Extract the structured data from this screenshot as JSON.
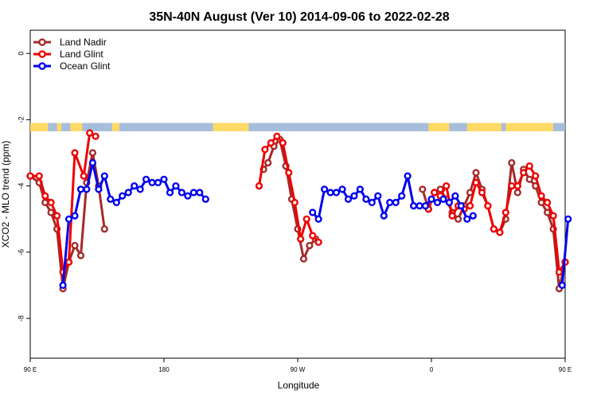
{
  "chart_data": {
    "type": "line",
    "title": "35N-40N August (Ver 10)   2014-09-06 to 2022-02-28",
    "xlabel": "Longitude",
    "ylabel": "XCO2 - MLO trend (ppm)",
    "xlim": [
      90,
      450
    ],
    "ylim": [
      -9.2,
      0.7
    ],
    "x_ticks": [
      {
        "value": 90,
        "label": "90 E"
      },
      {
        "value": 180,
        "label": "180"
      },
      {
        "value": 270,
        "label": "90 W"
      },
      {
        "value": 360,
        "label": "0"
      },
      {
        "value": 450,
        "label": "90 E"
      },
      {
        "value": 540,
        "label": "180"
      }
    ],
    "y_ticks": [
      {
        "value": 0,
        "label": "0"
      },
      {
        "value": -2,
        "label": "-2"
      },
      {
        "value": -4,
        "label": "-4"
      },
      {
        "value": -6,
        "label": "-6"
      },
      {
        "value": -8,
        "label": "-8"
      }
    ],
    "grid": false,
    "legend": {
      "position": "top-left"
    },
    "series": [
      {
        "name": "Land Nadir",
        "color": "#A52A2A",
        "segments": [
          [
            [
              90,
              -3.7
            ],
            [
              96,
              -3.9
            ],
            [
              100,
              -4.5
            ],
            [
              104,
              -4.8
            ],
            [
              108,
              -5.3
            ],
            [
              112,
              -7.1
            ],
            [
              116,
              -6.3
            ],
            [
              120,
              -5.8
            ],
            [
              124,
              -6.1
            ],
            [
              128,
              -3.9
            ],
            [
              132,
              -3.0
            ],
            [
              136,
              -4.0
            ],
            [
              140,
              -5.3
            ]
          ],
          [
            [
              247,
              -3.5
            ],
            [
              250,
              -3.3
            ],
            [
              254,
              -2.8
            ],
            [
              258,
              -2.6
            ],
            [
              262,
              -3.4
            ],
            [
              266,
              -4.4
            ],
            [
              270,
              -5.3
            ],
            [
              274,
              -6.2
            ],
            [
              278,
              -5.8
            ],
            [
              282,
              -5.6
            ]
          ],
          [
            [
              354,
              -4.1
            ],
            [
              358,
              -4.7
            ],
            [
              362,
              -4.2
            ],
            [
              366,
              -4.1
            ],
            [
              370,
              -4.4
            ],
            [
              374,
              -4.8
            ],
            [
              378,
              -5.0
            ],
            [
              382,
              -4.6
            ],
            [
              386,
              -4.2
            ],
            [
              390,
              -3.6
            ],
            [
              394,
              -4.1
            ],
            [
              398,
              -4.6
            ],
            [
              402,
              -5.3
            ],
            [
              406,
              -5.4
            ],
            [
              410,
              -5.0
            ],
            [
              414,
              -3.3
            ],
            [
              418,
              -4.2
            ],
            [
              422,
              -3.5
            ],
            [
              426,
              -3.8
            ],
            [
              430,
              -4.0
            ],
            [
              434,
              -4.5
            ],
            [
              438,
              -4.8
            ],
            [
              442,
              -5.3
            ],
            [
              446,
              -7.1
            ],
            [
              450,
              -6.3
            ]
          ]
        ]
      },
      {
        "name": "Land Glint",
        "color": "#EE0000",
        "segments": [
          [
            [
              90,
              -3.7
            ],
            [
              96,
              -3.7
            ],
            [
              100,
              -4.3
            ],
            [
              104,
              -4.5
            ],
            [
              108,
              -4.9
            ],
            [
              112,
              -6.6
            ],
            [
              116,
              -6.3
            ],
            [
              120,
              -3.0
            ],
            [
              126,
              -3.7
            ],
            [
              130,
              -2.4
            ],
            [
              134,
              -2.5
            ]
          ],
          [
            [
              244,
              -4.0
            ],
            [
              248,
              -2.9
            ],
            [
              252,
              -2.7
            ],
            [
              256,
              -2.5
            ],
            [
              260,
              -2.7
            ],
            [
              264,
              -3.6
            ],
            [
              268,
              -4.5
            ],
            [
              272,
              -5.6
            ],
            [
              276,
              -5.0
            ],
            [
              280,
              -5.5
            ],
            [
              284,
              -5.7
            ]
          ],
          [
            [
              358,
              -4.7
            ],
            [
              362,
              -4.2
            ],
            [
              366,
              -4.3
            ],
            [
              370,
              -4.0
            ],
            [
              374,
              -4.9
            ],
            [
              378,
              -4.6
            ],
            [
              382,
              -4.7
            ],
            [
              386,
              -4.6
            ],
            [
              390,
              -3.9
            ],
            [
              394,
              -4.2
            ],
            [
              398,
              -4.6
            ],
            [
              402,
              -5.3
            ],
            [
              406,
              -5.4
            ],
            [
              410,
              -4.8
            ],
            [
              414,
              -4.0
            ],
            [
              418,
              -4.0
            ],
            [
              422,
              -3.6
            ],
            [
              426,
              -3.4
            ],
            [
              430,
              -3.7
            ],
            [
              434,
              -4.3
            ],
            [
              438,
              -4.5
            ],
            [
              442,
              -4.9
            ],
            [
              446,
              -6.6
            ],
            [
              450,
              -6.3
            ]
          ]
        ]
      },
      {
        "name": "Ocean Glint",
        "color": "#0000EE",
        "segments": [
          [
            [
              112,
              -7.0
            ],
            [
              116,
              -5.0
            ],
            [
              120,
              -4.9
            ],
            [
              124,
              -4.1
            ],
            [
              128,
              -4.1
            ],
            [
              132,
              -3.3
            ],
            [
              136,
              -4.1
            ],
            [
              140,
              -3.7
            ],
            [
              144,
              -4.4
            ],
            [
              148,
              -4.5
            ],
            [
              152,
              -4.3
            ],
            [
              156,
              -4.2
            ],
            [
              160,
              -4.0
            ],
            [
              164,
              -4.1
            ],
            [
              168,
              -3.8
            ],
            [
              172,
              -3.9
            ],
            [
              176,
              -3.9
            ],
            [
              180,
              -3.8
            ],
            [
              184,
              -4.2
            ],
            [
              188,
              -4.0
            ],
            [
              192,
              -4.2
            ],
            [
              196,
              -4.3
            ],
            [
              200,
              -4.2
            ],
            [
              204,
              -4.2
            ],
            [
              208,
              -4.4
            ]
          ],
          [
            [
              280,
              -4.8
            ],
            [
              284,
              -5.0
            ],
            [
              288,
              -4.1
            ],
            [
              292,
              -4.2
            ],
            [
              296,
              -4.2
            ],
            [
              300,
              -4.1
            ],
            [
              304,
              -4.4
            ],
            [
              308,
              -4.3
            ],
            [
              312,
              -4.1
            ],
            [
              316,
              -4.4
            ],
            [
              320,
              -4.5
            ],
            [
              324,
              -4.3
            ],
            [
              328,
              -4.9
            ],
            [
              332,
              -4.5
            ],
            [
              336,
              -4.5
            ],
            [
              340,
              -4.3
            ],
            [
              344,
              -3.7
            ],
            [
              348,
              -4.6
            ],
            [
              352,
              -4.6
            ],
            [
              356,
              -4.6
            ],
            [
              360,
              -4.4
            ],
            [
              364,
              -4.5
            ],
            [
              368,
              -4.4
            ],
            [
              372,
              -4.5
            ],
            [
              376,
              -4.3
            ],
            [
              380,
              -4.6
            ],
            [
              384,
              -5.0
            ],
            [
              388,
              -4.9
            ]
          ],
          [
            [
              448,
              -7.0
            ],
            [
              452,
              -5.0
            ]
          ]
        ]
      }
    ],
    "land_ocean_band": {
      "y_range": [
        -2.35,
        -2.1
      ],
      "land_color": "#FFD966",
      "ocean_color": "#A6BDDB",
      "land_intervals": [
        [
          90,
          102
        ],
        [
          108,
          111
        ],
        [
          117,
          125
        ],
        [
          145,
          150
        ],
        [
          213,
          237
        ],
        [
          358,
          372
        ],
        [
          384,
          407
        ],
        [
          410,
          442
        ]
      ]
    },
    "legend_entries": [
      {
        "label": "Land Nadir",
        "color": "#A52A2A"
      },
      {
        "label": "Land Glint",
        "color": "#EE0000"
      },
      {
        "label": "Ocean Glint",
        "color": "#0000EE"
      }
    ]
  }
}
